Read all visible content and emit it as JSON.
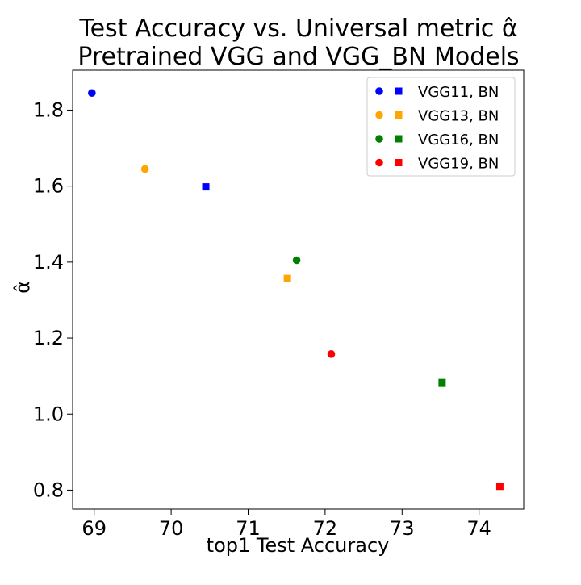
{
  "chart_data": {
    "type": "scatter",
    "title_line1": "Test Accuracy vs. Universal metric α̂",
    "title_line2": "Pretrained VGG and VGG_BN Models",
    "xlabel": "top1 Test Accuracy",
    "ylabel": "α̂",
    "xlim": [
      68.72,
      74.58
    ],
    "ylim": [
      0.75,
      1.905
    ],
    "xticks": [
      69,
      70,
      71,
      72,
      73,
      74
    ],
    "yticks": [
      0.8,
      1.0,
      1.2,
      1.4,
      1.6,
      1.8
    ],
    "ytick_labels": [
      "0.8",
      "1.0",
      "1.2",
      "1.4",
      "1.6",
      "1.8"
    ],
    "grid": false,
    "legend_position": "top-right",
    "series": [
      {
        "name": "VGG11, BN",
        "color": "#0000ff",
        "points": [
          {
            "x": 68.97,
            "y": 1.845,
            "marker": "circle"
          },
          {
            "x": 70.45,
            "y": 1.598,
            "marker": "square"
          }
        ]
      },
      {
        "name": "VGG13, BN",
        "color": "#ffa500",
        "points": [
          {
            "x": 69.66,
            "y": 1.645,
            "marker": "circle"
          },
          {
            "x": 71.51,
            "y": 1.357,
            "marker": "square"
          }
        ]
      },
      {
        "name": "VGG16, BN",
        "color": "#008000",
        "points": [
          {
            "x": 71.63,
            "y": 1.405,
            "marker": "circle"
          },
          {
            "x": 73.52,
            "y": 1.083,
            "marker": "square"
          }
        ]
      },
      {
        "name": "VGG19, BN",
        "color": "#ff0000",
        "points": [
          {
            "x": 72.08,
            "y": 1.158,
            "marker": "circle"
          },
          {
            "x": 74.27,
            "y": 0.81,
            "marker": "square"
          }
        ]
      }
    ]
  }
}
